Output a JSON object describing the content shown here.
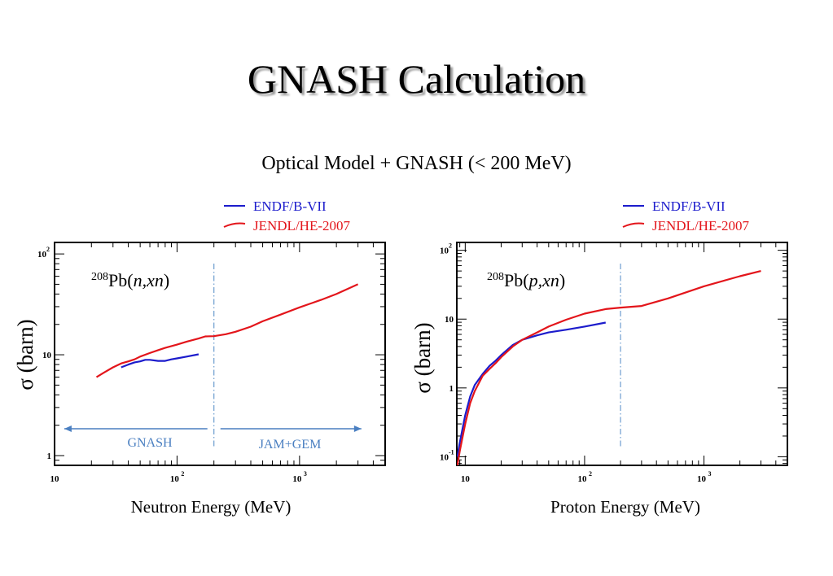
{
  "title": "GNASH Calculation",
  "subtitle": "Optical Model + GNASH (< 200 MeV)",
  "colors": {
    "endf": "#1c1ccc",
    "jendl": "#e3151b",
    "arrow": "#4a7fc1",
    "divider": "#6d9dcf"
  },
  "chart_data": [
    {
      "type": "line",
      "reaction": {
        "pre": "208",
        "element": "Pb(",
        "proj": "n,xn",
        "post": ")"
      },
      "xlabel": "Neutron Energy (MeV)",
      "ylabel": "σ (barn)",
      "xscale": "log",
      "yscale": "log",
      "xlim": [
        10,
        5000
      ],
      "ylim": [
        0.8,
        130
      ],
      "xticks": [
        {
          "v": 10,
          "base": "10",
          "exp": ""
        },
        {
          "v": 100,
          "base": "10",
          "exp": "2"
        },
        {
          "v": 1000,
          "base": "10",
          "exp": "3"
        }
      ],
      "yticks": [
        {
          "v": 1,
          "base": "1",
          "exp": ""
        },
        {
          "v": 10,
          "base": "10",
          "exp": ""
        },
        {
          "v": 100,
          "base": "10",
          "exp": "2"
        }
      ],
      "legend_position": "top-right",
      "divider_x": 200,
      "regions": [
        {
          "label": "GNASH",
          "from": 200,
          "to": 12
        },
        {
          "label": "JAM+GEM",
          "from": 200,
          "to": 3200
        }
      ],
      "series": [
        {
          "name": "ENDF/B-VII",
          "color": "#1c1ccc",
          "x": [
            35,
            40,
            45,
            50,
            55,
            60,
            70,
            80,
            90,
            100,
            120,
            150
          ],
          "y": [
            7.5,
            8.0,
            8.4,
            8.6,
            8.9,
            8.9,
            8.7,
            8.7,
            9.0,
            9.2,
            9.6,
            10.1
          ]
        },
        {
          "name": "JENDL/HE-2007",
          "color": "#e3151b",
          "x": [
            22,
            25,
            30,
            35,
            40,
            45,
            50,
            60,
            70,
            80,
            100,
            120,
            150,
            170,
            200,
            250,
            300,
            400,
            500,
            700,
            1000,
            1500,
            2000,
            3000
          ],
          "y": [
            6.0,
            6.6,
            7.5,
            8.2,
            8.6,
            9.0,
            9.6,
            10.4,
            11.1,
            11.7,
            12.6,
            13.5,
            14.5,
            15.2,
            15.3,
            16.0,
            16.9,
            19.0,
            21.5,
            25.0,
            29.5,
            35.0,
            40.0,
            50.0
          ]
        }
      ]
    },
    {
      "type": "line",
      "reaction": {
        "pre": "208",
        "element": "Pb(",
        "proj": "p,xn",
        "post": ")"
      },
      "xlabel": "Proton Energy (MeV)",
      "ylabel": "σ (barn)",
      "xscale": "log",
      "yscale": "log",
      "xlim": [
        8.5,
        5000
      ],
      "ylim": [
        0.075,
        130
      ],
      "xticks": [
        {
          "v": 10,
          "base": "10",
          "exp": ""
        },
        {
          "v": 100,
          "base": "10",
          "exp": "2"
        },
        {
          "v": 1000,
          "base": "10",
          "exp": "3"
        }
      ],
      "yticks": [
        {
          "v": 0.1,
          "base": "10",
          "exp": "-1"
        },
        {
          "v": 1,
          "base": "1",
          "exp": ""
        },
        {
          "v": 10,
          "base": "10",
          "exp": ""
        },
        {
          "v": 100,
          "base": "10",
          "exp": "2"
        }
      ],
      "legend_position": "top-right",
      "divider_x": 200,
      "regions": [],
      "series": [
        {
          "name": "ENDF/B-VII",
          "color": "#1c1ccc",
          "x": [
            8.6,
            9,
            10,
            11,
            12,
            14,
            16,
            18,
            20,
            25,
            30,
            40,
            50,
            70,
            100,
            150
          ],
          "y": [
            0.1,
            0.16,
            0.4,
            0.75,
            1.1,
            1.6,
            2.1,
            2.5,
            3.0,
            4.2,
            5.0,
            5.8,
            6.4,
            7.0,
            7.8,
            8.9
          ]
        },
        {
          "name": "JENDL/HE-2007",
          "color": "#e3151b",
          "x": [
            8.6,
            9,
            10,
            11,
            12,
            14,
            16,
            18,
            20,
            25,
            30,
            40,
            50,
            70,
            100,
            150,
            200,
            300,
            500,
            1000,
            2000,
            3000
          ],
          "y": [
            0.075,
            0.12,
            0.3,
            0.6,
            0.9,
            1.5,
            1.9,
            2.3,
            2.8,
            4.0,
            5.0,
            6.4,
            7.8,
            9.8,
            12.0,
            14.0,
            14.7,
            15.5,
            20.0,
            30.0,
            42.0,
            50.0
          ]
        }
      ]
    }
  ]
}
